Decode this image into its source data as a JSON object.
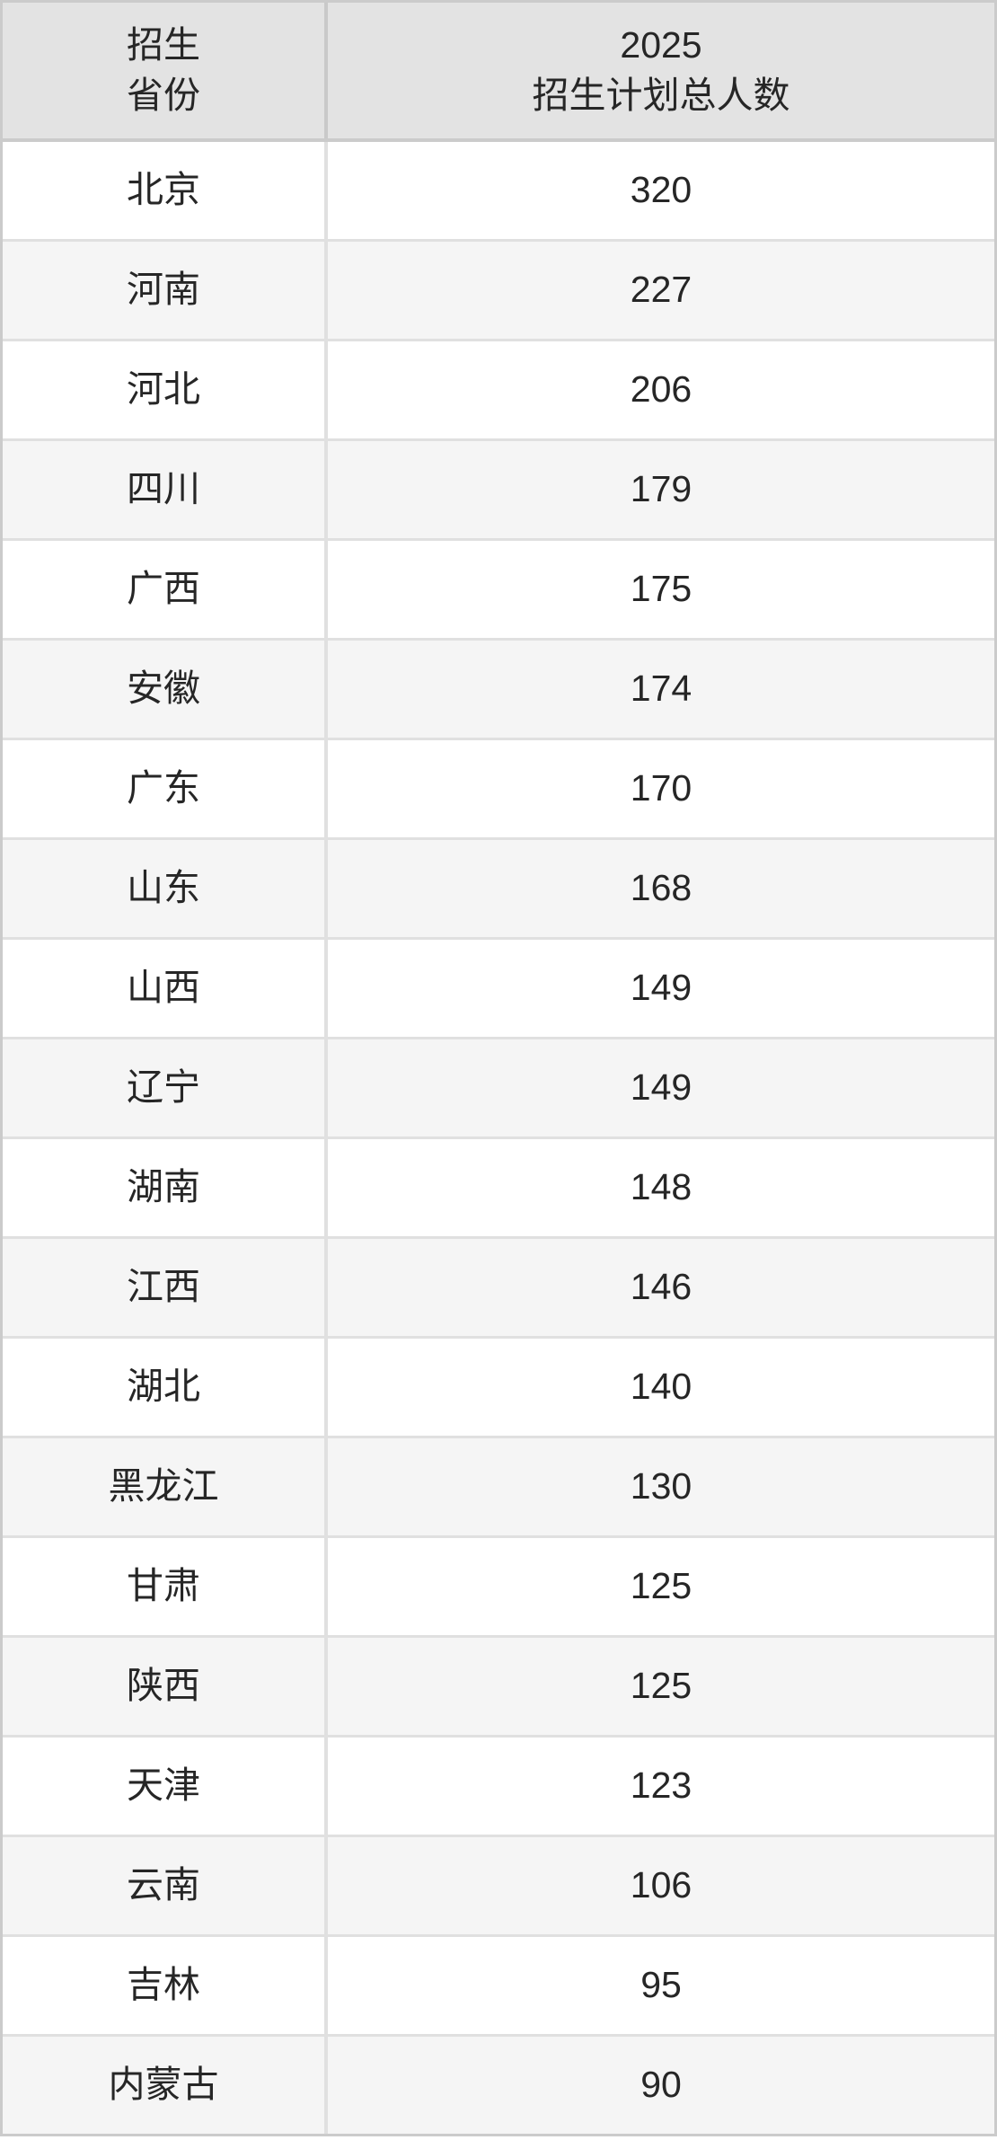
{
  "colors": {
    "header_bg": "#e3e3e3",
    "row_bg": "#ffffff",
    "row_alt_bg": "#f5f5f5",
    "outer_border": "#cbcbcb",
    "inner_border": "#e0e0e0",
    "header_divider": "#c9c9c9",
    "text": "#262626"
  },
  "table": {
    "header": {
      "province_label": "招生\n省份",
      "total_label": "2025\n招生计划总人数"
    },
    "rows": [
      {
        "province": "北京",
        "total": "320"
      },
      {
        "province": "河南",
        "total": "227"
      },
      {
        "province": "河北",
        "total": "206"
      },
      {
        "province": "四川",
        "total": "179"
      },
      {
        "province": "广西",
        "total": "175"
      },
      {
        "province": "安徽",
        "total": "174"
      },
      {
        "province": "广东",
        "total": "170"
      },
      {
        "province": "山东",
        "total": "168"
      },
      {
        "province": "山西",
        "total": "149"
      },
      {
        "province": "辽宁",
        "total": "149"
      },
      {
        "province": "湖南",
        "total": "148"
      },
      {
        "province": "江西",
        "total": "146"
      },
      {
        "province": "湖北",
        "total": "140"
      },
      {
        "province": "黑龙江",
        "total": "130"
      },
      {
        "province": "甘肃",
        "total": "125"
      },
      {
        "province": "陕西",
        "total": "125"
      },
      {
        "province": "天津",
        "total": "123"
      },
      {
        "province": "云南",
        "total": "106"
      },
      {
        "province": "吉林",
        "total": "95"
      },
      {
        "province": "内蒙古",
        "total": "90"
      }
    ]
  },
  "chart_data": {
    "type": "table",
    "title": "2025招生计划总人数",
    "columns": [
      "招生省份",
      "2025招生计划总人数"
    ],
    "categories": [
      "北京",
      "河南",
      "河北",
      "四川",
      "广西",
      "安徽",
      "广东",
      "山东",
      "山西",
      "辽宁",
      "湖南",
      "江西",
      "湖北",
      "黑龙江",
      "甘肃",
      "陕西",
      "天津",
      "云南",
      "吉林",
      "内蒙古"
    ],
    "values": [
      320,
      227,
      206,
      179,
      175,
      174,
      170,
      168,
      149,
      149,
      148,
      146,
      140,
      130,
      125,
      125,
      123,
      106,
      95,
      90
    ]
  }
}
